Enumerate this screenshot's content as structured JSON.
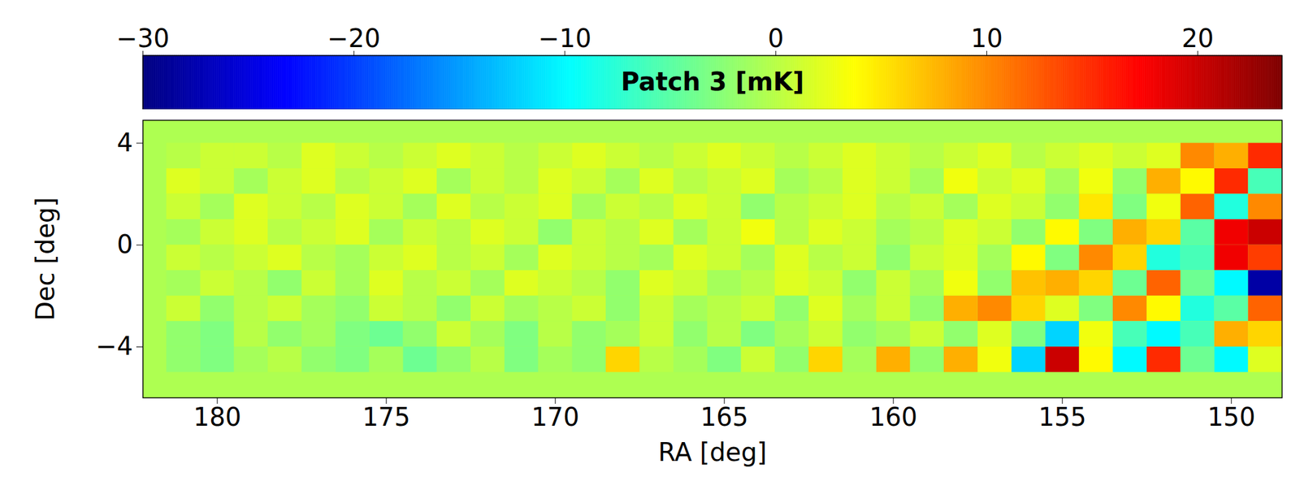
{
  "chart_data": {
    "type": "heatmap",
    "x_label": "RA [deg]",
    "y_label": "Dec [deg]",
    "xlim": [
      182.2,
      148.5
    ],
    "xticks": [
      180,
      175,
      170,
      165,
      160,
      155,
      150
    ],
    "ylim": [
      -6,
      4.9
    ],
    "yticks": [
      -4,
      0,
      4
    ],
    "colorbar": {
      "label": "Patch 3 [mK]",
      "lim": [
        -30,
        24
      ],
      "ticks": [
        -30,
        -20,
        -10,
        0,
        10,
        20
      ]
    },
    "ra": [
      149,
      150,
      151,
      152,
      153,
      154,
      155,
      156,
      157,
      158,
      159,
      160,
      161,
      162,
      163,
      164,
      165,
      166,
      167,
      168,
      169,
      170,
      171,
      172,
      173,
      174,
      175,
      176,
      177,
      178,
      179,
      180,
      181
    ],
    "dec": [
      3.5,
      2.5,
      1.5,
      0.5,
      -0.5,
      -1.5,
      -2.5,
      -3.5,
      -4.5
    ],
    "cells": [
      [
        15,
        8,
        10,
        2,
        1,
        2,
        1,
        0,
        2,
        1,
        0,
        1,
        2,
        1,
        0,
        1,
        2,
        1,
        0,
        1,
        2,
        1,
        0,
        1,
        2,
        1,
        0,
        1,
        2,
        0,
        1,
        1,
        0
      ],
      [
        -6,
        15,
        4,
        8,
        -2,
        3,
        -1,
        2,
        1,
        3,
        -1,
        1,
        2,
        0,
        -1,
        2,
        1,
        0,
        2,
        -1,
        1,
        2,
        0,
        1,
        -1,
        2,
        1,
        0,
        2,
        1,
        -1,
        1,
        2
      ],
      [
        10,
        -8,
        12,
        3,
        -3,
        5,
        -2,
        1,
        2,
        -1,
        1,
        0,
        2,
        1,
        0,
        -2,
        1,
        2,
        0,
        1,
        -1,
        2,
        1,
        0,
        2,
        -1,
        1,
        2,
        0,
        1,
        2,
        -1,
        1
      ],
      [
        20,
        18,
        -5,
        6,
        8,
        -3,
        4,
        -2,
        1,
        2,
        0,
        -1,
        1,
        2,
        0,
        3,
        1,
        -1,
        2,
        0,
        1,
        -2,
        1,
        2,
        0,
        1,
        -1,
        2,
        1,
        0,
        2,
        1,
        -1
      ],
      [
        14,
        18,
        -6,
        -8,
        6,
        10,
        -3,
        4,
        -1,
        2,
        1,
        -2,
        1,
        0,
        2,
        -1,
        1,
        2,
        -1,
        0,
        1,
        2,
        -1,
        1,
        0,
        2,
        1,
        -1,
        0,
        2,
        1,
        0,
        1
      ],
      [
        -28,
        -10,
        -4,
        12,
        -4,
        6,
        8,
        7,
        -2,
        3,
        -1,
        1,
        -2,
        1,
        2,
        0,
        -1,
        1,
        2,
        -2,
        0,
        1,
        2,
        -1,
        1,
        0,
        2,
        -1,
        1,
        -2,
        0,
        1,
        -1
      ],
      [
        12,
        -5,
        -8,
        4,
        10,
        -3,
        2,
        6,
        10,
        8,
        -2,
        1,
        -1,
        2,
        -2,
        1,
        0,
        -1,
        1,
        -2,
        1,
        0,
        -1,
        1,
        -2,
        0,
        1,
        -2,
        -1,
        1,
        0,
        -2,
        1
      ],
      [
        6,
        8,
        -6,
        -10,
        -6,
        3,
        -12,
        -3,
        2,
        -2,
        1,
        -1,
        -2,
        1,
        -1,
        -3,
        0,
        -2,
        1,
        -1,
        -2,
        0,
        -3,
        -1,
        1,
        -2,
        -4,
        -3,
        -1,
        -2,
        0,
        -3,
        -2
      ],
      [
        2,
        -10,
        -4,
        15,
        -10,
        4,
        20,
        -12,
        3,
        8,
        -2,
        8,
        -1,
        6,
        -2,
        1,
        -3,
        -1,
        0,
        6,
        -2,
        -1,
        -3,
        0,
        -2,
        -4,
        -1,
        -3,
        -2,
        0,
        -1,
        -3,
        -2
      ]
    ]
  }
}
